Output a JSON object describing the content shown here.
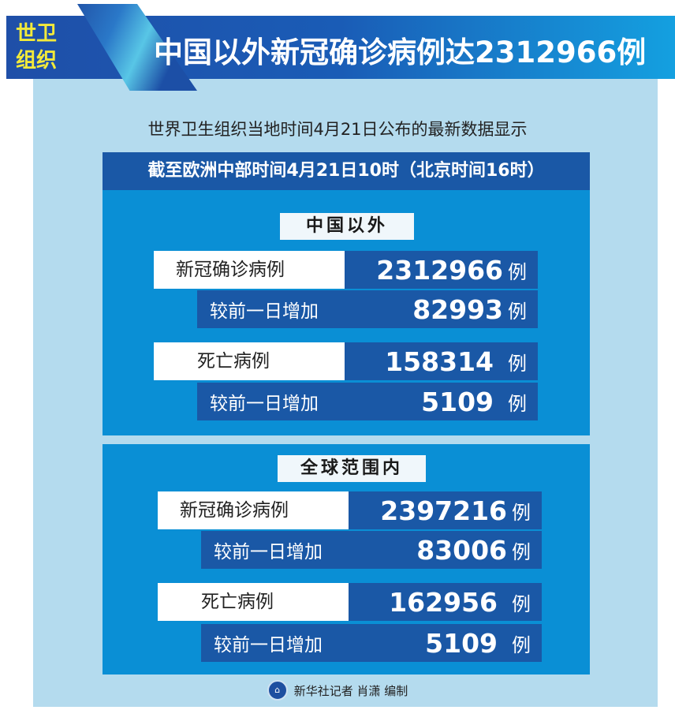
{
  "header": {
    "badge": [
      "世卫",
      "组织"
    ],
    "title": "中国以外新冠确诊病例达2312966例"
  },
  "subtitle": "世界卫生组织当地时间4月21日公布的最新数据显示",
  "timebar": "截至欧洲中部时间4月21日10时（北京时间16时）",
  "sections": [
    {
      "label": "中国以外",
      "rows": [
        {
          "label": "新冠确诊病例",
          "value": "2312966",
          "unit": "例"
        },
        {
          "label": "较前一日增加",
          "value": "82993",
          "unit": "例"
        },
        {
          "label": "死亡病例",
          "value": "158314",
          "unit": "例"
        },
        {
          "label": "较前一日增加",
          "value": "5109",
          "unit": "例"
        }
      ]
    },
    {
      "label": "全球范围内",
      "rows": [
        {
          "label": "新冠确诊病例",
          "value": "2397216",
          "unit": "例"
        },
        {
          "label": "较前一日增加",
          "value": "83006",
          "unit": "例"
        },
        {
          "label": "死亡病例",
          "value": "162956",
          "unit": "例"
        },
        {
          "label": "较前一日增加",
          "value": "5109",
          "unit": "例"
        }
      ]
    }
  ],
  "footer": {
    "credit": "新华社记者 肖潇 编制"
  },
  "colors": {
    "banner": "#1a5cb6",
    "panel": "#b4dbee",
    "section": "#0a8fd5",
    "dark": "#1a58a6",
    "badge": "#f3ea3a"
  }
}
